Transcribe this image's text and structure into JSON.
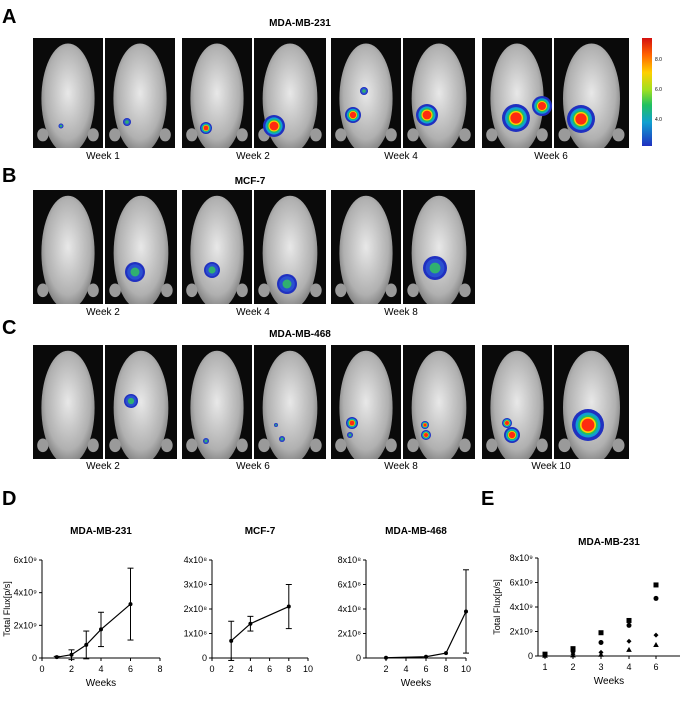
{
  "panels": {
    "A": {
      "letter": "A",
      "title": "MDA-MB-231",
      "weeks": [
        "Week 1",
        "Week 2",
        "Week 4",
        "Week 6"
      ]
    },
    "B": {
      "letter": "B",
      "title": "MCF-7",
      "weeks": [
        "Week 2",
        "Week 4",
        "Week 8"
      ]
    },
    "C": {
      "letter": "C",
      "title": "MDA-MB-468",
      "weeks": [
        "Week 2",
        "Week 6",
        "Week 8",
        "Week 10"
      ]
    },
    "D": {
      "letter": "D"
    },
    "E": {
      "letter": "E"
    }
  },
  "scale_ticks": [
    "8.0",
    "6.0",
    "4.0"
  ],
  "colors": {
    "trace": "#000000",
    "scale_high": "#d41010",
    "scale_low": "#2030c0"
  },
  "chart_data": [
    {
      "type": "line",
      "title": "MDA-MB-231",
      "xlabel": "Weeks",
      "ylabel": "Total Flux[p/s]",
      "xlim": [
        0,
        8
      ],
      "ylim": [
        0,
        6000000000.0
      ],
      "xticks": [
        "0",
        "2",
        "4",
        "6",
        "8"
      ],
      "yticks": [
        "0",
        "2x10⁹",
        "4x10⁹",
        "6x10⁹"
      ],
      "x": [
        1,
        2,
        3,
        4,
        6
      ],
      "values": [
        50000000.0,
        200000000.0,
        800000000.0,
        1750000000.0,
        3300000000.0
      ],
      "err": [
        50000000.0,
        300000000.0,
        850000000.0,
        1050000000.0,
        2200000000.0
      ]
    },
    {
      "type": "line",
      "title": "MCF-7",
      "xlabel": "",
      "ylabel": "",
      "xlim": [
        0,
        10
      ],
      "ylim": [
        0,
        400000000.0
      ],
      "xticks": [
        "0",
        "2",
        "4",
        "6",
        "8",
        "10"
      ],
      "yticks": [
        "0",
        "1x10⁸",
        "2x10⁸",
        "3x10⁸",
        "4x10⁸"
      ],
      "x": [
        2,
        4,
        8
      ],
      "values": [
        70000000.0,
        140000000.0,
        210000000.0
      ],
      "err": [
        80000000.0,
        30000000.0,
        90000000.0
      ]
    },
    {
      "type": "line",
      "title": "MDA-MB-468",
      "xlabel": "Weeks",
      "ylabel": "",
      "xlim": [
        0,
        10
      ],
      "ylim": [
        0,
        800000000.0
      ],
      "xticks": [
        "2",
        "4",
        "6",
        "8",
        "10"
      ],
      "yticks": [
        "0",
        "2x10⁸",
        "4x10⁸",
        "6x10⁸",
        "8x10⁸"
      ],
      "x": [
        2,
        6,
        8,
        10
      ],
      "values": [
        2000000.0,
        10000000.0,
        40000000.0,
        380000000.0
      ],
      "err": [
        0,
        0,
        0,
        340000000.0
      ]
    },
    {
      "type": "scatter",
      "title": "MDA-MB-231",
      "xlabel": "Weeks",
      "ylabel": "Total Flux[p/s]",
      "ylim": [
        0,
        8000000000.0
      ],
      "xticks": [
        "1",
        "2",
        "3",
        "4",
        "6"
      ],
      "yticks": [
        "0",
        "2x10⁹",
        "4x10⁹",
        "6x10⁹",
        "8x10⁹"
      ],
      "series": [
        {
          "marker": "square",
          "values": [
            150000000.0,
            600000000.0,
            1900000000.0,
            2900000000.0,
            5800000000.0
          ]
        },
        {
          "marker": "circle",
          "values": [
            100000000.0,
            400000000.0,
            1100000000.0,
            2500000000.0,
            4700000000.0
          ]
        },
        {
          "marker": "diamond",
          "values": [
            50000000.0,
            150000000.0,
            300000000.0,
            1200000000.0,
            1700000000.0
          ]
        },
        {
          "marker": "triangle",
          "values": [
            20000000.0,
            50000000.0,
            100000000.0,
            500000000.0,
            900000000.0
          ]
        }
      ]
    }
  ]
}
